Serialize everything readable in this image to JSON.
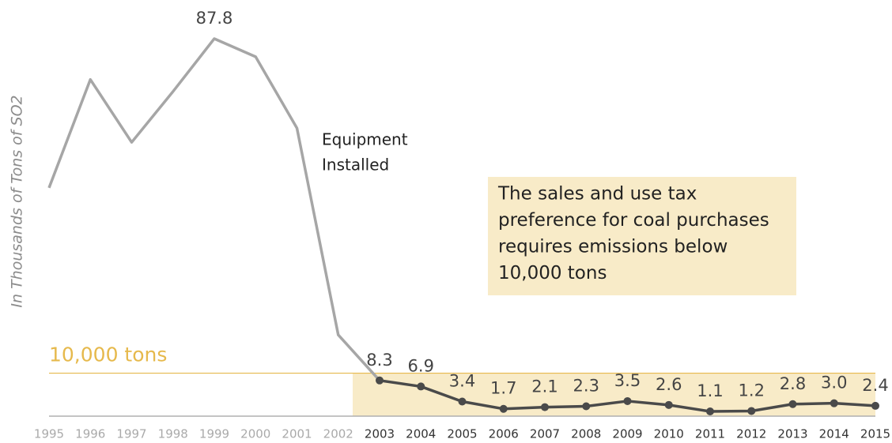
{
  "chart_data": {
    "type": "line",
    "y_label": "In Thousands of Tons of SO2",
    "categories": [
      "1995",
      "1996",
      "1997",
      "1998",
      "1999",
      "2000",
      "2001",
      "2002",
      "2003",
      "2004",
      "2005",
      "2006",
      "2007",
      "2008",
      "2009",
      "2010",
      "2011",
      "2012",
      "2013",
      "2014",
      "2015"
    ],
    "values": [
      53.1,
      78.3,
      63.7,
      75.5,
      87.8,
      83.6,
      67.0,
      18.9,
      8.3,
      6.9,
      3.4,
      1.7,
      2.1,
      2.3,
      3.5,
      2.6,
      1.1,
      1.2,
      2.8,
      3.0,
      2.4
    ],
    "value_labels": [
      null,
      null,
      null,
      null,
      "87.8",
      null,
      null,
      null,
      "8.3",
      "6.9",
      "3.4",
      "1.7",
      "2.1",
      "2.3",
      "3.5",
      "2.6",
      "1.1",
      "1.2",
      "2.8",
      "3.0",
      "2.4"
    ],
    "color": "#a6a6a6",
    "highlight": {
      "from": "2003",
      "color": "#4a4a4a",
      "fill": "#f8ebc8"
    },
    "ylim": [
      0,
      90
    ],
    "threshold": {
      "value": 10,
      "label": "10,000 tons",
      "color": "#e6b94c"
    },
    "annotations": [
      {
        "lines": [
          "Equipment",
          "Installed"
        ]
      },
      {
        "lines": [
          "The sales and use tax",
          "preference for coal purchases",
          "requires emissions below",
          "10,000 tons"
        ]
      }
    ]
  }
}
